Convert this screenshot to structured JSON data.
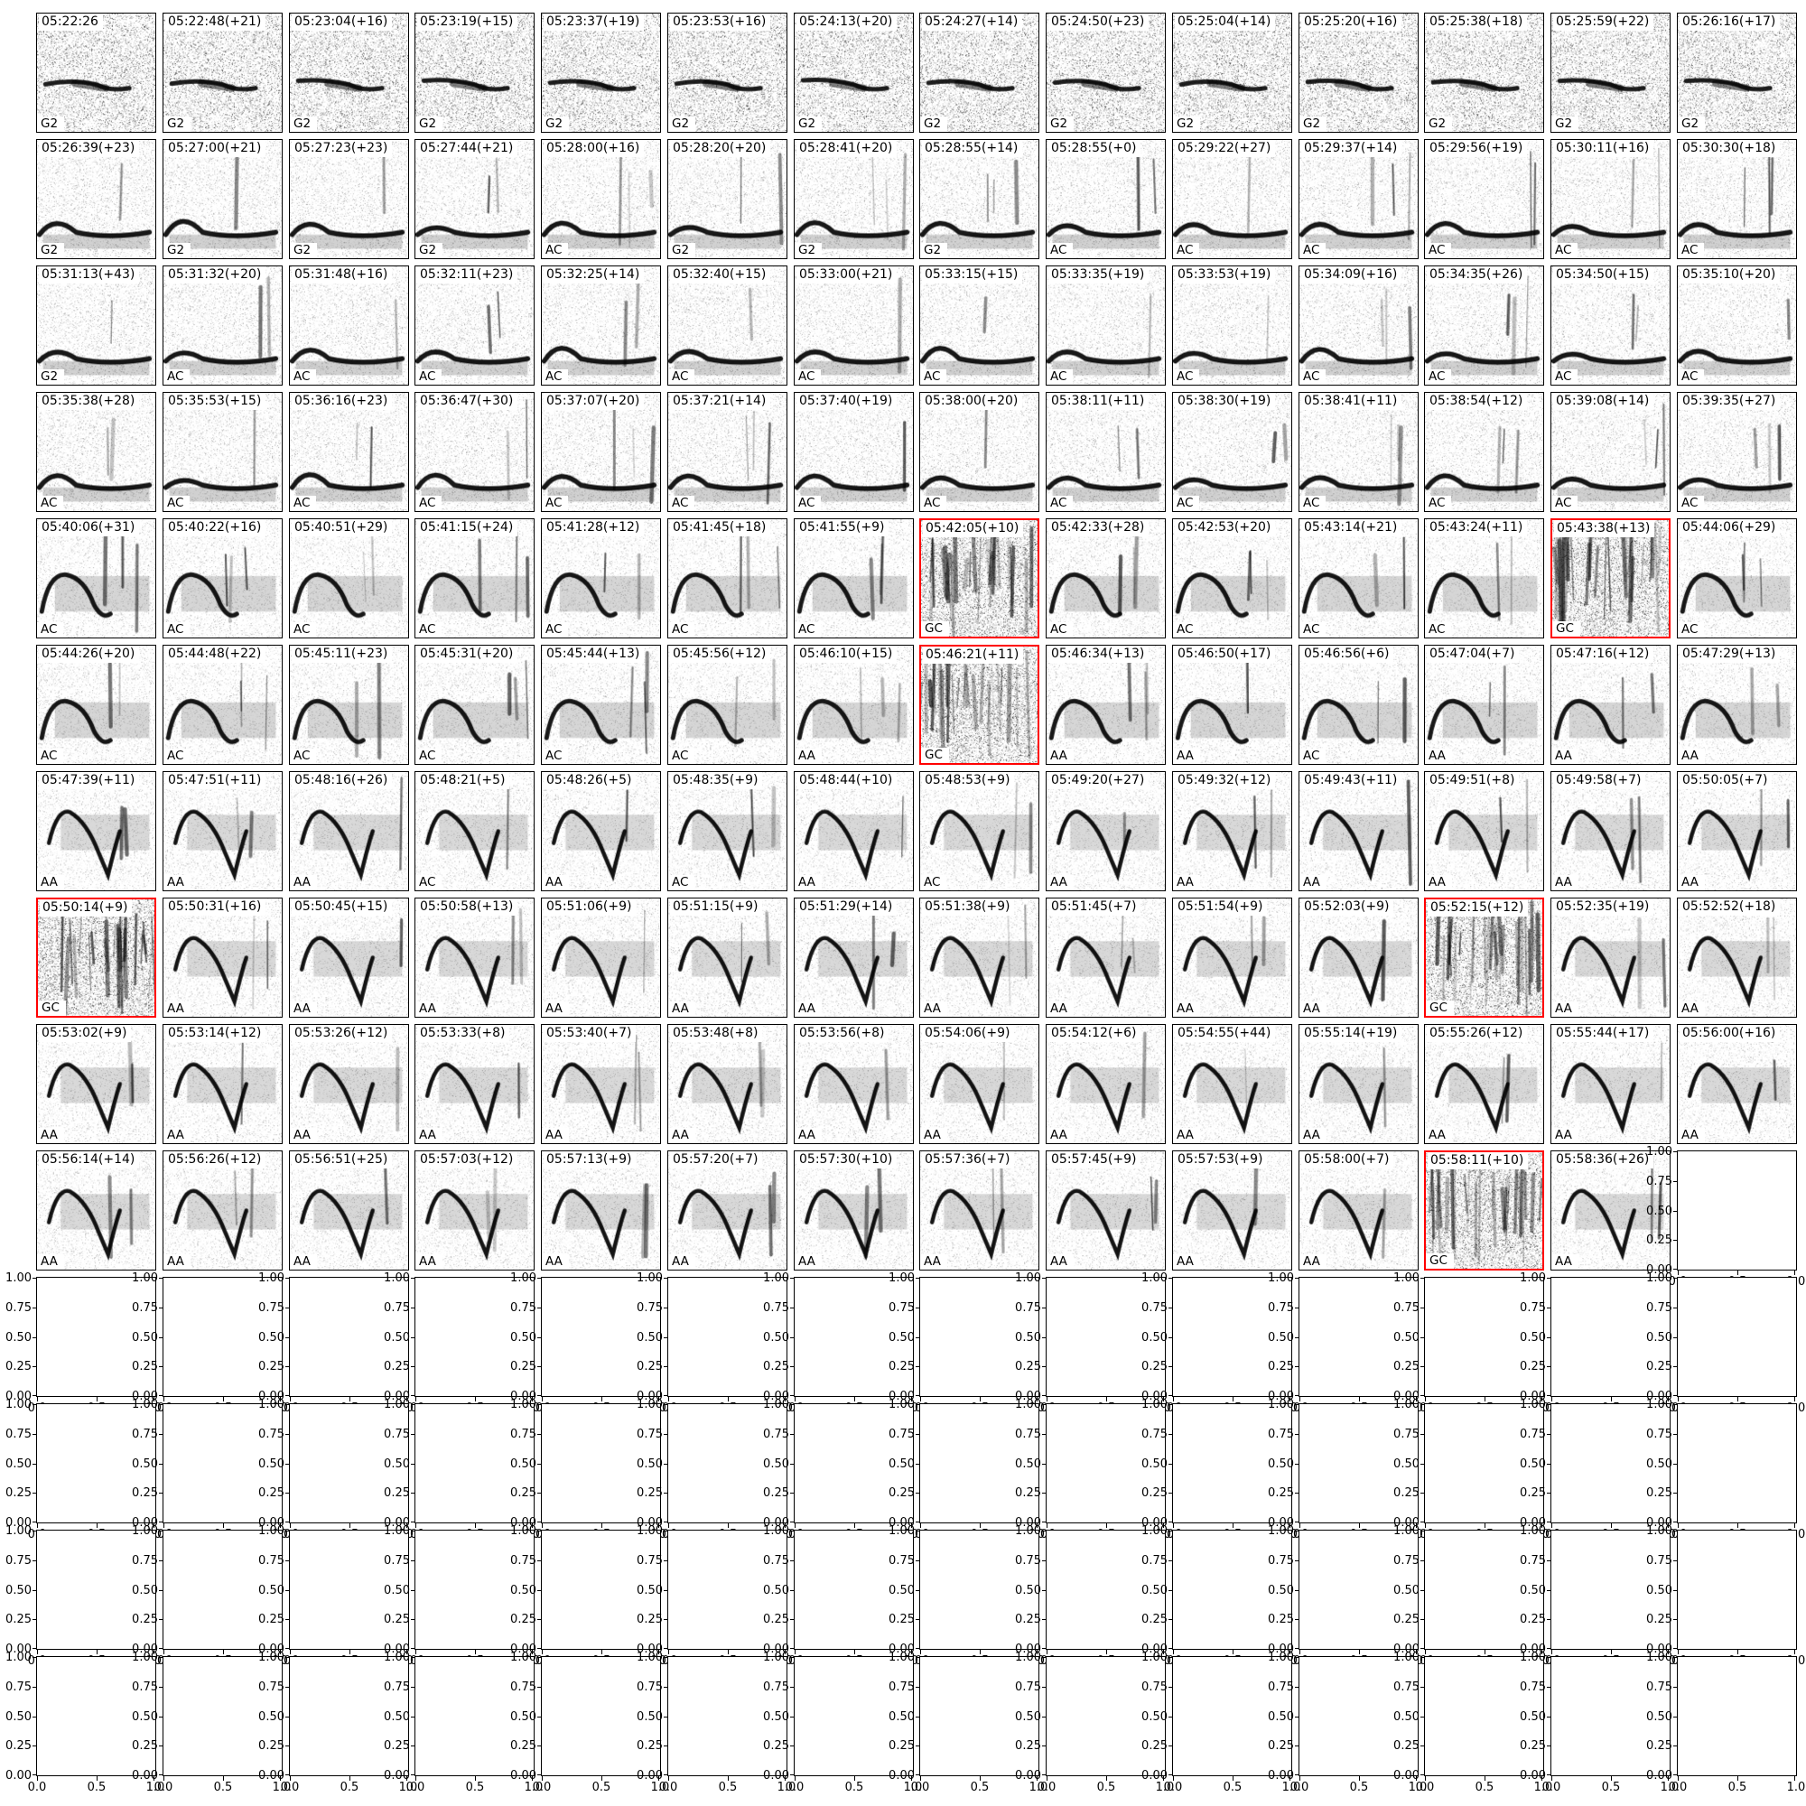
{
  "figure": {
    "background": "#ffffff",
    "description": "Grid of spectrogram thumbnails with timestamps and call-class labels; unused subplots are empty axes"
  },
  "colors": {
    "highlight_border": "#ff0000",
    "axes": "#000000",
    "text": "#000000"
  },
  "chart_data": {
    "type": "heatmap",
    "subtype": "spectrogram-small-multiples",
    "grid": {
      "rows": 14,
      "cols": 14,
      "spectrogram_cells": 139,
      "empty_axes_cells": 57
    },
    "label_classes": [
      "G2",
      "AC",
      "AA",
      "GC"
    ],
    "highlight_rule": "cells labeled GC are outlined in red",
    "rows": [
      {
        "cells": [
          {
            "title": "05:22:26",
            "label": "G2"
          },
          {
            "title": "05:22:48(+21)",
            "label": "G2"
          },
          {
            "title": "05:23:04(+16)",
            "label": "G2"
          },
          {
            "title": "05:23:19(+15)",
            "label": "G2"
          },
          {
            "title": "05:23:37(+19)",
            "label": "G2"
          },
          {
            "title": "05:23:53(+16)",
            "label": "G2"
          },
          {
            "title": "05:24:13(+20)",
            "label": "G2"
          },
          {
            "title": "05:24:27(+14)",
            "label": "G2"
          },
          {
            "title": "05:24:50(+23)",
            "label": "G2"
          },
          {
            "title": "05:25:04(+14)",
            "label": "G2"
          },
          {
            "title": "05:25:20(+16)",
            "label": "G2"
          },
          {
            "title": "05:25:38(+18)",
            "label": "G2"
          },
          {
            "title": "05:25:59(+22)",
            "label": "G2"
          },
          {
            "title": "05:26:16(+17)",
            "label": "G2"
          }
        ]
      },
      {
        "cells": [
          {
            "title": "05:26:39(+23)",
            "label": "G2"
          },
          {
            "title": "05:27:00(+21)",
            "label": "G2"
          },
          {
            "title": "05:27:23(+23)",
            "label": "G2"
          },
          {
            "title": "05:27:44(+21)",
            "label": "G2"
          },
          {
            "title": "05:28:00(+16)",
            "label": "AC"
          },
          {
            "title": "05:28:20(+20)",
            "label": "G2"
          },
          {
            "title": "05:28:41(+20)",
            "label": "G2"
          },
          {
            "title": "05:28:55(+14)",
            "label": "G2"
          },
          {
            "title": "05:28:55(+0)",
            "label": "AC"
          },
          {
            "title": "05:29:22(+27)",
            "label": "AC"
          },
          {
            "title": "05:29:37(+14)",
            "label": "AC"
          },
          {
            "title": "05:29:56(+19)",
            "label": "AC"
          },
          {
            "title": "05:30:11(+16)",
            "label": "AC"
          },
          {
            "title": "05:30:30(+18)",
            "label": "AC"
          }
        ]
      },
      {
        "cells": [
          {
            "title": "05:31:13(+43)",
            "label": "G2"
          },
          {
            "title": "05:31:32(+20)",
            "label": "AC"
          },
          {
            "title": "05:31:48(+16)",
            "label": "AC"
          },
          {
            "title": "05:32:11(+23)",
            "label": "AC"
          },
          {
            "title": "05:32:25(+14)",
            "label": "AC"
          },
          {
            "title": "05:32:40(+15)",
            "label": "AC"
          },
          {
            "title": "05:33:00(+21)",
            "label": "AC"
          },
          {
            "title": "05:33:15(+15)",
            "label": "AC"
          },
          {
            "title": "05:33:35(+19)",
            "label": "AC"
          },
          {
            "title": "05:33:53(+19)",
            "label": "AC"
          },
          {
            "title": "05:34:09(+16)",
            "label": "AC"
          },
          {
            "title": "05:34:35(+26)",
            "label": "AC"
          },
          {
            "title": "05:34:50(+15)",
            "label": "AC"
          },
          {
            "title": "05:35:10(+20)",
            "label": "AC"
          }
        ]
      },
      {
        "cells": [
          {
            "title": "05:35:38(+28)",
            "label": "AC"
          },
          {
            "title": "05:35:53(+15)",
            "label": "AC"
          },
          {
            "title": "05:36:16(+23)",
            "label": "AC"
          },
          {
            "title": "05:36:47(+30)",
            "label": "AC"
          },
          {
            "title": "05:37:07(+20)",
            "label": "AC"
          },
          {
            "title": "05:37:21(+14)",
            "label": "AC"
          },
          {
            "title": "05:37:40(+19)",
            "label": "AC"
          },
          {
            "title": "05:38:00(+20)",
            "label": "AC"
          },
          {
            "title": "05:38:11(+11)",
            "label": "AC"
          },
          {
            "title": "05:38:30(+19)",
            "label": "AC"
          },
          {
            "title": "05:38:41(+11)",
            "label": "AC"
          },
          {
            "title": "05:38:54(+12)",
            "label": "AC"
          },
          {
            "title": "05:39:08(+14)",
            "label": "AC"
          },
          {
            "title": "05:39:35(+27)",
            "label": "AC"
          }
        ]
      },
      {
        "cells": [
          {
            "title": "05:40:06(+31)",
            "label": "AC"
          },
          {
            "title": "05:40:22(+16)",
            "label": "AC"
          },
          {
            "title": "05:40:51(+29)",
            "label": "AC"
          },
          {
            "title": "05:41:15(+24)",
            "label": "AC"
          },
          {
            "title": "05:41:28(+12)",
            "label": "AC"
          },
          {
            "title": "05:41:45(+18)",
            "label": "AC"
          },
          {
            "title": "05:41:55(+9)",
            "label": "AC"
          },
          {
            "title": "05:42:05(+10)",
            "label": "GC"
          },
          {
            "title": "05:42:33(+28)",
            "label": "AC"
          },
          {
            "title": "05:42:53(+20)",
            "label": "AC"
          },
          {
            "title": "05:43:14(+21)",
            "label": "AC"
          },
          {
            "title": "05:43:24(+11)",
            "label": "AC"
          },
          {
            "title": "05:43:38(+13)",
            "label": "GC"
          },
          {
            "title": "05:44:06(+29)",
            "label": "AC"
          }
        ]
      },
      {
        "cells": [
          {
            "title": "05:44:26(+20)",
            "label": "AC"
          },
          {
            "title": "05:44:48(+22)",
            "label": "AC"
          },
          {
            "title": "05:45:11(+23)",
            "label": "AC"
          },
          {
            "title": "05:45:31(+20)",
            "label": "AC"
          },
          {
            "title": "05:45:44(+13)",
            "label": "AC"
          },
          {
            "title": "05:45:56(+12)",
            "label": "AC"
          },
          {
            "title": "05:46:10(+15)",
            "label": "AA"
          },
          {
            "title": "05:46:21(+11)",
            "label": "GC"
          },
          {
            "title": "05:46:34(+13)",
            "label": "AA"
          },
          {
            "title": "05:46:50(+17)",
            "label": "AA"
          },
          {
            "title": "05:46:56(+6)",
            "label": "AC"
          },
          {
            "title": "05:47:04(+7)",
            "label": "AA"
          },
          {
            "title": "05:47:16(+12)",
            "label": "AA"
          },
          {
            "title": "05:47:29(+13)",
            "label": "AA"
          }
        ]
      },
      {
        "cells": [
          {
            "title": "05:47:39(+11)",
            "label": "AA"
          },
          {
            "title": "05:47:51(+11)",
            "label": "AA"
          },
          {
            "title": "05:48:16(+26)",
            "label": "AA"
          },
          {
            "title": "05:48:21(+5)",
            "label": "AC"
          },
          {
            "title": "05:48:26(+5)",
            "label": "AA"
          },
          {
            "title": "05:48:35(+9)",
            "label": "AC"
          },
          {
            "title": "05:48:44(+10)",
            "label": "AA"
          },
          {
            "title": "05:48:53(+9)",
            "label": "AC"
          },
          {
            "title": "05:49:20(+27)",
            "label": "AA"
          },
          {
            "title": "05:49:32(+12)",
            "label": "AA"
          },
          {
            "title": "05:49:43(+11)",
            "label": "AA"
          },
          {
            "title": "05:49:51(+8)",
            "label": "AA"
          },
          {
            "title": "05:49:58(+7)",
            "label": "AA"
          },
          {
            "title": "05:50:05(+7)",
            "label": "AA"
          }
        ]
      },
      {
        "cells": [
          {
            "title": "05:50:14(+9)",
            "label": "GC"
          },
          {
            "title": "05:50:31(+16)",
            "label": "AA"
          },
          {
            "title": "05:50:45(+15)",
            "label": "AA"
          },
          {
            "title": "05:50:58(+13)",
            "label": "AA"
          },
          {
            "title": "05:51:06(+9)",
            "label": "AA"
          },
          {
            "title": "05:51:15(+9)",
            "label": "AA"
          },
          {
            "title": "05:51:29(+14)",
            "label": "AA"
          },
          {
            "title": "05:51:38(+9)",
            "label": "AA"
          },
          {
            "title": "05:51:45(+7)",
            "label": "AA"
          },
          {
            "title": "05:51:54(+9)",
            "label": "AA"
          },
          {
            "title": "05:52:03(+9)",
            "label": "AA"
          },
          {
            "title": "05:52:15(+12)",
            "label": "GC"
          },
          {
            "title": "05:52:35(+19)",
            "label": "AA"
          },
          {
            "title": "05:52:52(+18)",
            "label": "AA"
          }
        ]
      },
      {
        "cells": [
          {
            "title": "05:53:02(+9)",
            "label": "AA"
          },
          {
            "title": "05:53:14(+12)",
            "label": "AA"
          },
          {
            "title": "05:53:26(+12)",
            "label": "AA"
          },
          {
            "title": "05:53:33(+8)",
            "label": "AA"
          },
          {
            "title": "05:53:40(+7)",
            "label": "AA"
          },
          {
            "title": "05:53:48(+8)",
            "label": "AA"
          },
          {
            "title": "05:53:56(+8)",
            "label": "AA"
          },
          {
            "title": "05:54:06(+9)",
            "label": "AA"
          },
          {
            "title": "05:54:12(+6)",
            "label": "AA"
          },
          {
            "title": "05:54:55(+44)",
            "label": "AA"
          },
          {
            "title": "05:55:14(+19)",
            "label": "AA"
          },
          {
            "title": "05:55:26(+12)",
            "label": "AA"
          },
          {
            "title": "05:55:44(+17)",
            "label": "AA"
          },
          {
            "title": "05:56:00(+16)",
            "label": "AA"
          }
        ]
      },
      {
        "cells": [
          {
            "title": "05:56:14(+14)",
            "label": "AA"
          },
          {
            "title": "05:56:26(+12)",
            "label": "AA"
          },
          {
            "title": "05:56:51(+25)",
            "label": "AA"
          },
          {
            "title": "05:57:03(+12)",
            "label": "AA"
          },
          {
            "title": "05:57:13(+9)",
            "label": "AA"
          },
          {
            "title": "05:57:20(+7)",
            "label": "AA"
          },
          {
            "title": "05:57:30(+10)",
            "label": "AA"
          },
          {
            "title": "05:57:36(+7)",
            "label": "AA"
          },
          {
            "title": "05:57:45(+9)",
            "label": "AA"
          },
          {
            "title": "05:57:53(+9)",
            "label": "AA"
          },
          {
            "title": "05:58:00(+7)",
            "label": "AA"
          },
          {
            "title": "05:58:11(+10)",
            "label": "GC"
          },
          {
            "title": "05:58:36(+26)",
            "label": "AA"
          }
        ]
      }
    ],
    "empty_axes": {
      "xlim": [
        0.0,
        1.0
      ],
      "ylim": [
        0.0,
        1.0
      ],
      "ytick_labels": [
        "1.00",
        "0.75",
        "0.50",
        "0.25",
        "0.00"
      ],
      "xtick_labels": [
        "0.0",
        "0.5",
        "1.0"
      ]
    }
  }
}
